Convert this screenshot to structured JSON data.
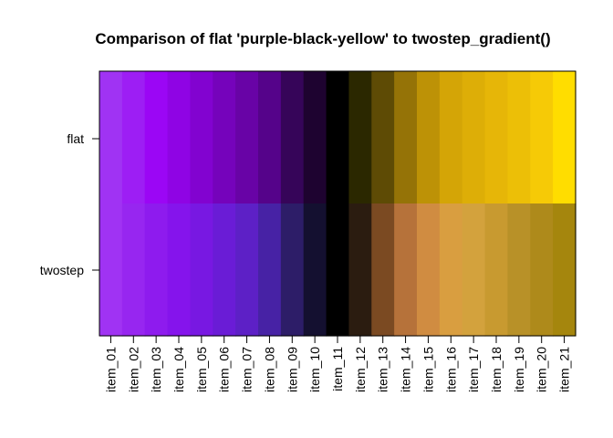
{
  "chart_data": {
    "type": "heatmap",
    "title": "Comparison of flat 'purple-black-yellow' to twostep_gradient()",
    "xlabel": "",
    "ylabel": "",
    "categories": [
      "item_01",
      "item_02",
      "item_03",
      "item_04",
      "item_05",
      "item_06",
      "item_07",
      "item_08",
      "item_09",
      "item_10",
      "item_11",
      "item_12",
      "item_13",
      "item_14",
      "item_15",
      "item_16",
      "item_17",
      "item_18",
      "item_19",
      "item_20",
      "item_21"
    ],
    "rows": [
      "flat",
      "twostep"
    ],
    "series": [
      {
        "name": "flat",
        "colors": [
          "#A033F3",
          "#9D1EF4",
          "#9B06F5",
          "#8F04E4",
          "#8203D0",
          "#7503BB",
          "#6803A6",
          "#55038A",
          "#360559",
          "#1E0330",
          "#000000",
          "#2B2800",
          "#5E4B05",
          "#957307",
          "#BD9206",
          "#D4A506",
          "#DDAE07",
          "#E6B608",
          "#ECBF07",
          "#F6CA06",
          "#FFDD00"
        ]
      },
      {
        "name": "twostep",
        "colors": [
          "#A033F3",
          "#9726F0",
          "#8E1BEE",
          "#8514EC",
          "#7818E2",
          "#6A1CD6",
          "#5D20C6",
          "#4722A5",
          "#2D1D68",
          "#141030",
          "#000000",
          "#2B1C10",
          "#7B4A22",
          "#B6723A",
          "#D08C41",
          "#D99E40",
          "#D3A23D",
          "#C89A30",
          "#B89128",
          "#AE8A1B",
          "#A5860D"
        ]
      }
    ],
    "y_axis_labels": [
      "flat",
      "twostep"
    ]
  }
}
